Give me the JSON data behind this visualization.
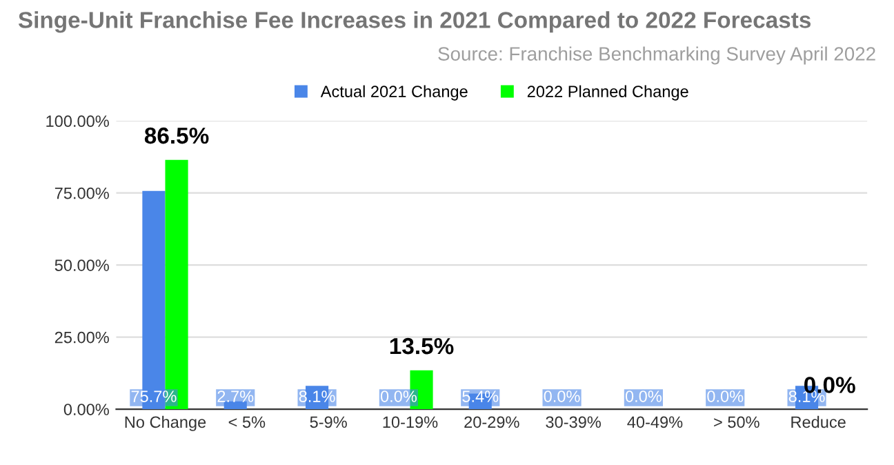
{
  "chart_data": {
    "type": "bar",
    "title": "Singe-Unit Franchise Fee Increases in 2021 Compared to 2022 Forecasts",
    "subtitle": "Source: Franchise Benchmarking Survey April 2022",
    "categories": [
      "No Change",
      "< 5%",
      "5-9%",
      "10-19%",
      "20-29%",
      "30-39%",
      "40-49%",
      "> 50%",
      "Reduce"
    ],
    "series": [
      {
        "name": "Actual 2021 Change",
        "color": "#4a86e8",
        "values": [
          75.7,
          2.7,
          8.1,
          0.0,
          5.4,
          0.0,
          0.0,
          0.0,
          8.1
        ],
        "value_labels": [
          "75.7%",
          "2.7%",
          "8.1%",
          "0.0%",
          "5.4%",
          "0.0%",
          "0.0%",
          "0.0%",
          "8.1%"
        ]
      },
      {
        "name": "2022 Planned Change",
        "color": "#00ff00",
        "values": [
          86.5,
          0,
          0,
          13.5,
          0,
          0,
          0,
          0,
          0.0
        ],
        "value_labels": [
          "86.5%",
          null,
          null,
          "13.5%",
          null,
          null,
          null,
          null,
          "0.0%"
        ]
      }
    ],
    "ylim": [
      0,
      100
    ],
    "yticks": [
      {
        "value": 0,
        "label": "0.00%"
      },
      {
        "value": 25,
        "label": "25.00%"
      },
      {
        "value": 50,
        "label": "50.00%"
      },
      {
        "value": 75,
        "label": "75.00%"
      },
      {
        "value": 100,
        "label": "100.00%"
      }
    ],
    "grid": "y",
    "legend": "top"
  }
}
